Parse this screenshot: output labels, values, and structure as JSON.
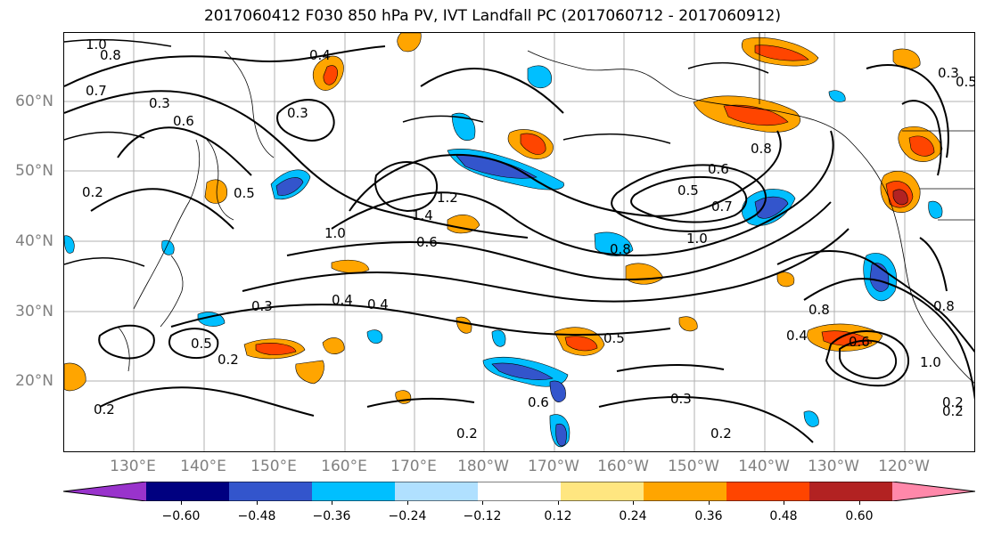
{
  "title": "2017060412 F030 850 hPa PV, IVT Landfall PC (2017060712 - 2017060912)",
  "lat_labels": [
    "60°N",
    "50°N",
    "40°N",
    "30°N",
    "20°N"
  ],
  "lon_labels": [
    "130°E",
    "140°E",
    "150°E",
    "160°E",
    "170°E",
    "180°W",
    "170°W",
    "160°W",
    "150°W",
    "140°W",
    "130°W",
    "120°W"
  ],
  "colorbar": {
    "colors": [
      "#9933cc",
      "#000080",
      "#3355cc",
      "#00bfff",
      "#b0e0ff",
      "#ffffff",
      "#ffe680",
      "#ffa500",
      "#ff4500",
      "#b22222",
      "#ff88aa"
    ],
    "tick_labels": [
      "−0.60",
      "−0.48",
      "−0.36",
      "−0.24",
      "−0.12",
      "0.12",
      "0.24",
      "0.36",
      "0.48",
      "0.60"
    ]
  },
  "contour_labels": [
    "1.0",
    "0.8",
    "0.4",
    "0.7",
    "0.3",
    "0.6",
    "0.5",
    "0.2",
    "0.3",
    "0.5",
    "1.0",
    "1.4",
    "1.2",
    "0.6",
    "0.8",
    "0.5",
    "0.7",
    "1.0",
    "0.8",
    "0.6",
    "0.4",
    "0.3",
    "0.2",
    "0.5",
    "0.2",
    "0.3",
    "0.2",
    "0.8",
    "0.6",
    "0.4",
    "0.2",
    "0.5",
    "1.0",
    "0.8",
    "0.3",
    "0.2",
    "0.6",
    "0.4",
    "0.2"
  ]
}
